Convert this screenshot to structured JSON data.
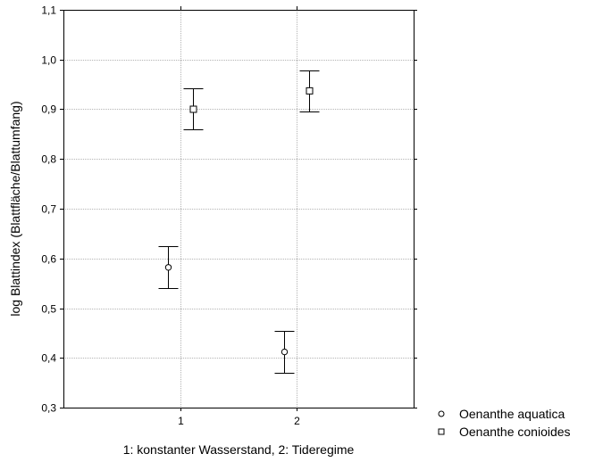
{
  "chart_data": {
    "type": "scatter",
    "subtype": "means-with-error-bars",
    "title": "",
    "xlabel": "1: konstanter Wasserstand, 2: Tideregime",
    "ylabel": "log Blattindex (Blattfläche/Blattumfang)",
    "categories": [
      "1",
      "2"
    ],
    "ylim": [
      0.3,
      1.1
    ],
    "yticks": [
      "0,3",
      "0,4",
      "0,5",
      "0,6",
      "0,7",
      "0,8",
      "0,9",
      "1,0",
      "1,1"
    ],
    "grid": true,
    "legend_position": "bottom-right, outside plot",
    "series": [
      {
        "name": "Oenanthe aquatica",
        "marker": "circle",
        "values": [
          0.582,
          0.412
        ],
        "lower": [
          0.54,
          0.37
        ],
        "upper": [
          0.625,
          0.455
        ]
      },
      {
        "name": "Oenanthe conioides",
        "marker": "square",
        "values": [
          0.9,
          0.937
        ],
        "lower": [
          0.86,
          0.895
        ],
        "upper": [
          0.942,
          0.978
        ]
      }
    ],
    "colors": {
      "axis": "#000000",
      "grid": "#b4b4b4",
      "marker_fill": "#ffffff",
      "marker_stroke": "#000000"
    }
  }
}
